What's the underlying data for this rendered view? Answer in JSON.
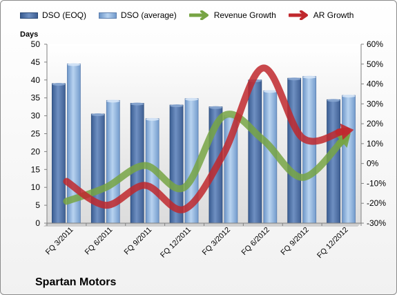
{
  "chart_data": {
    "type": "bar",
    "company": "Spartan Motors",
    "left_axis_label": "Days",
    "categories": [
      "FQ 3/2011",
      "FQ 6/2011",
      "FQ 9/2011",
      "FQ 12/2011",
      "FQ 3/2012",
      "FQ 6/2012",
      "FQ 9/2012",
      "FQ 12/2012"
    ],
    "ylim": [
      0,
      50
    ],
    "y_ticks": [
      "0",
      "5",
      "10",
      "15",
      "20",
      "25",
      "30",
      "35",
      "40",
      "45",
      "50"
    ],
    "y2lim": [
      -0.3,
      0.6
    ],
    "y2_ticks": [
      "-30%",
      "-20%",
      "-10%",
      "0%",
      "10%",
      "20%",
      "30%",
      "40%",
      "50%",
      "60%"
    ],
    "grid": false,
    "legend_position": "top",
    "series": [
      {
        "name": "DSO (EOQ)",
        "kind": "bar",
        "axis": "left",
        "color": "#4a6fa5",
        "values": [
          39,
          30.5,
          33.5,
          33,
          32.5,
          40,
          40.5,
          34.5
        ]
      },
      {
        "name": "DSO (average)",
        "kind": "bar",
        "axis": "left",
        "color": "#8fb3de",
        "values": [
          44.5,
          34.3,
          29.2,
          34.8,
          30,
          37,
          41,
          35.7
        ]
      },
      {
        "name": "Revenue Growth",
        "kind": "line",
        "axis": "right",
        "color": "#77a444",
        "values": [
          -0.19,
          -0.12,
          -0.01,
          -0.12,
          0.24,
          0.12,
          -0.07,
          0.11
        ]
      },
      {
        "name": "AR Growth",
        "kind": "line",
        "axis": "right",
        "color": "#c0282d",
        "values": [
          -0.09,
          -0.21,
          -0.11,
          -0.23,
          0.05,
          0.48,
          0.13,
          0.16
        ]
      }
    ]
  }
}
